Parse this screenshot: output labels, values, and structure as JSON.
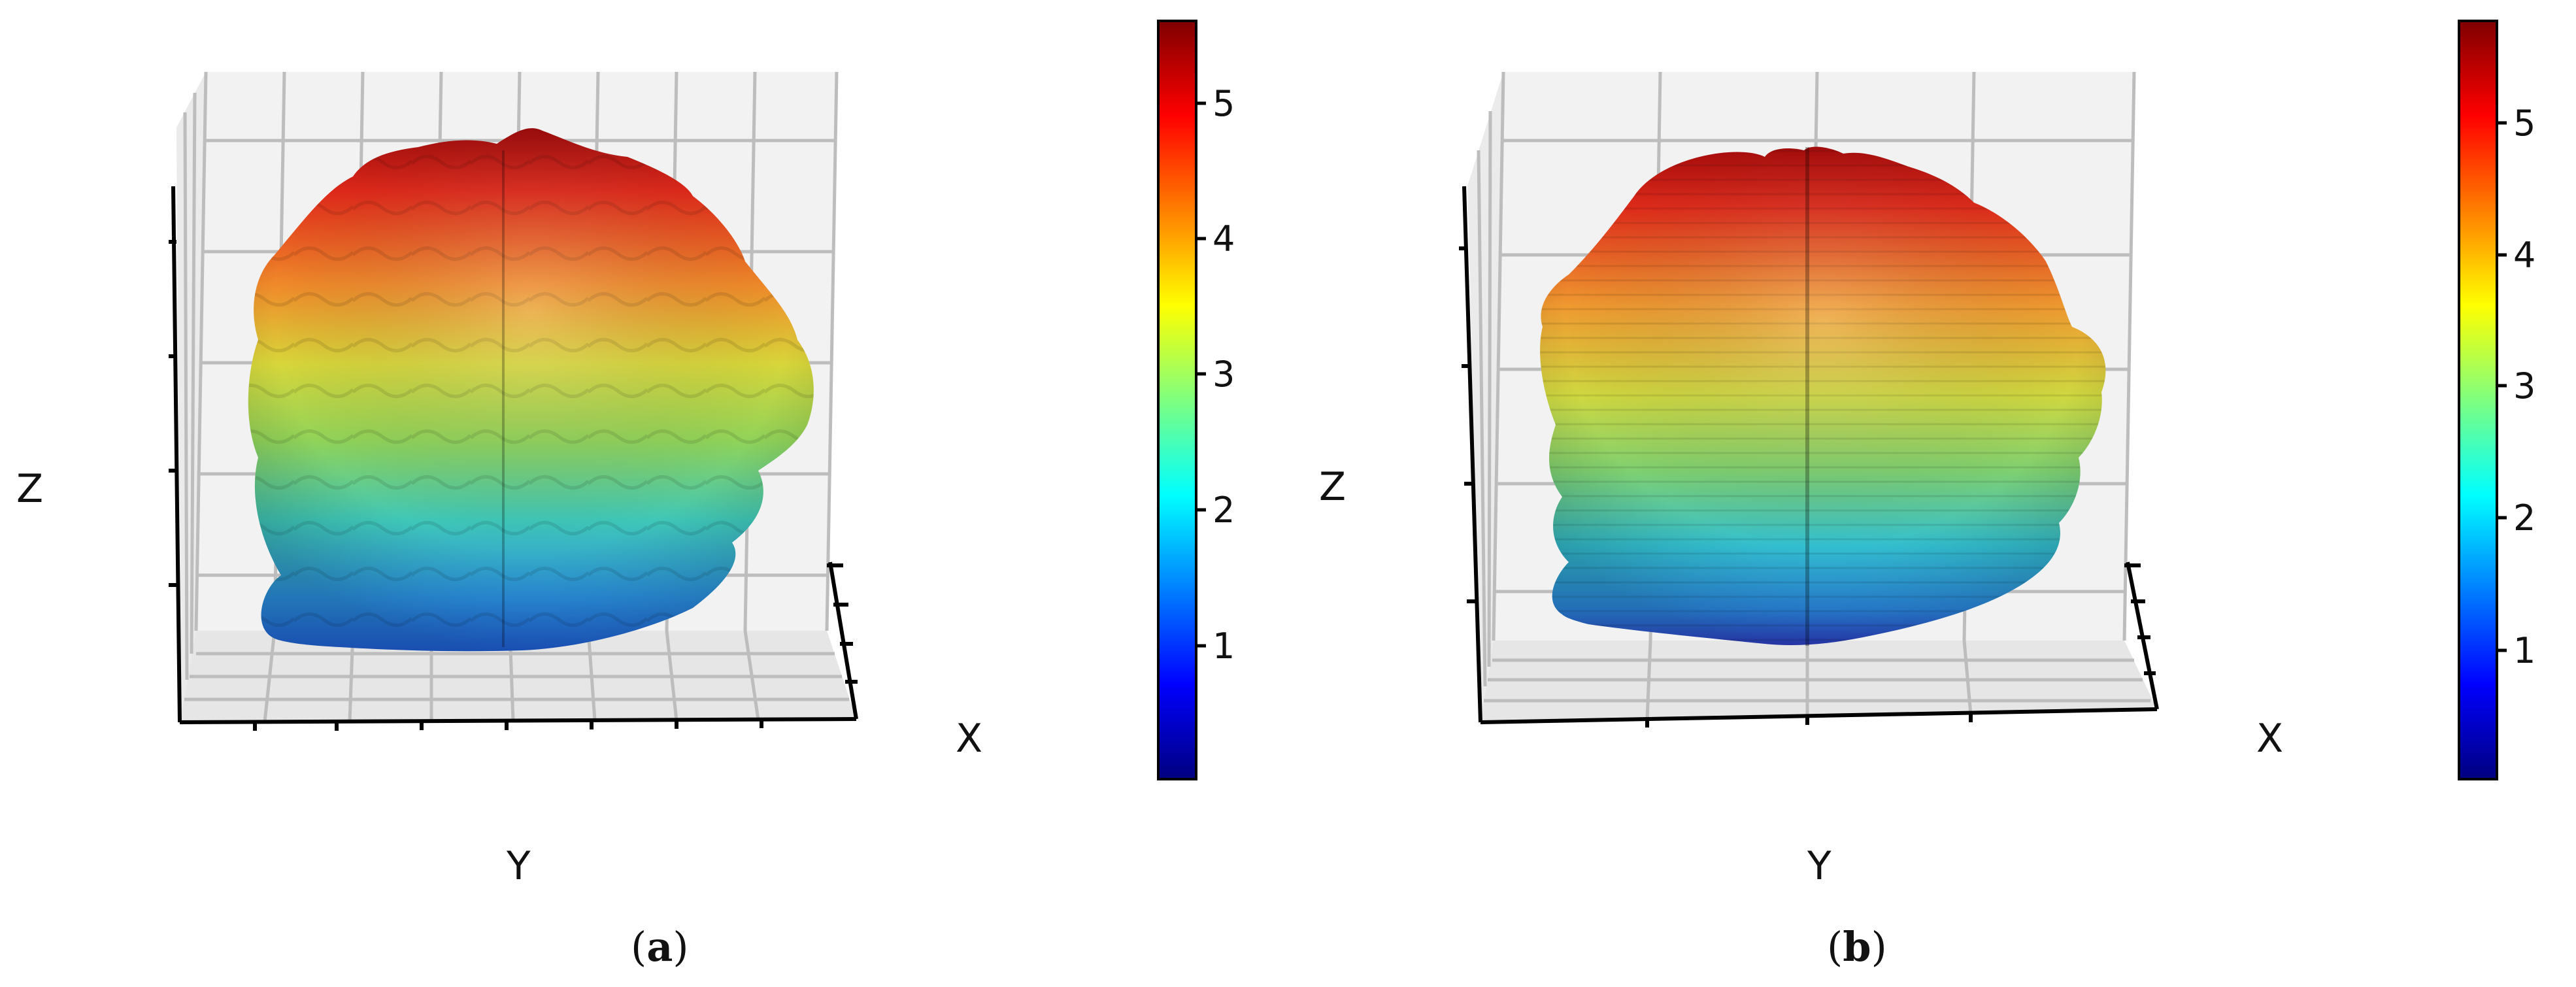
{
  "panels": [
    {
      "caption_open": "(",
      "caption_letter": "a",
      "caption_close": ")",
      "axis_labels": {
        "x": "X",
        "y": "Y",
        "z": "Z"
      },
      "colorbar": {
        "ticks": [
          "1",
          "2",
          "3",
          "4",
          "5"
        ]
      }
    },
    {
      "caption_open": "(",
      "caption_letter": "b",
      "caption_close": ")",
      "axis_labels": {
        "x": "X",
        "y": "Y",
        "z": "Z"
      },
      "colorbar": {
        "ticks": [
          "1",
          "2",
          "3",
          "4",
          "5"
        ]
      }
    }
  ],
  "chart_data": [
    {
      "type": "surface3d",
      "title": "",
      "xlabel": "X",
      "ylabel": "Y",
      "zlabel": "Z",
      "surface_shape": "bumpy dome",
      "colormap": "jet",
      "color_range": [
        0.05,
        5.55
      ],
      "colorbar_ticks": [
        1,
        2,
        3,
        4,
        5
      ],
      "grid": true
    },
    {
      "type": "surface3d",
      "title": "",
      "xlabel": "X",
      "ylabel": "Y",
      "zlabel": "Z",
      "surface_shape": "ribbed dome",
      "colormap": "jet",
      "color_range": [
        0.05,
        5.75
      ],
      "colorbar_ticks": [
        1,
        2,
        3,
        4,
        5
      ],
      "grid": true
    }
  ],
  "colors": {
    "jet": [
      "#00007f",
      "#0000ff",
      "#007fff",
      "#00ffff",
      "#7fff7f",
      "#ffff00",
      "#ff7f00",
      "#ff0000",
      "#7f0000"
    ],
    "pane": "#f2f2f2",
    "grid": "#bdbdbd",
    "axis": "#000000"
  }
}
